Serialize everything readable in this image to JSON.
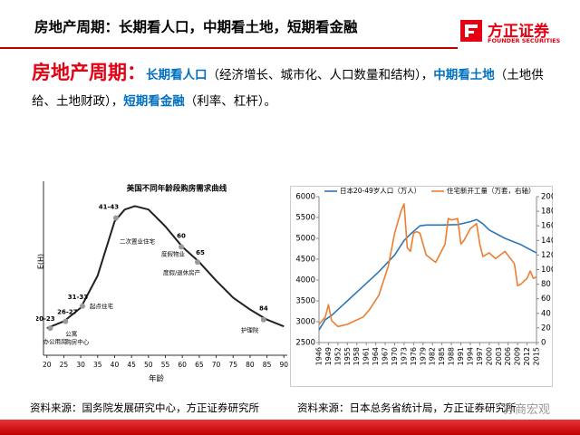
{
  "header": {
    "title": "房地产周期：长期看人口，中期看土地，短期看金融",
    "logo": "方正证券",
    "logo_sub": "FOUNDER SECURITIES"
  },
  "body": {
    "segments": [
      {
        "text": "房地产周期：",
        "color": "#e60012"
      },
      {
        "text": "长期看人口",
        "color": "#0070c0"
      },
      {
        "text": "（经济增长、城市化、人口数量和结构），",
        "color": "#000000"
      },
      {
        "text": "中期看土地",
        "color": "#0070c0"
      },
      {
        "text": "（土地供给、土地财政），",
        "color": "#000000"
      },
      {
        "text": "短期看金融",
        "color": "#0070c0"
      },
      {
        "text": "（利率、杠杆）。",
        "color": "#000000"
      }
    ]
  },
  "sources": [
    "资料来源：国务院发展研究中心，方正证券研究所",
    "资料来源：日本总务省统计局，方正证券研究所"
  ],
  "watermark": "券商宏观",
  "chart_data": [
    {
      "type": "line",
      "title": "美国不同年龄段购房需求曲线",
      "xlabel": "年龄",
      "ylabel": "E(H)",
      "x": [
        20,
        25,
        30,
        35,
        40,
        43,
        46,
        50,
        55,
        60,
        65,
        70,
        75,
        80,
        85,
        90
      ],
      "series": [
        {
          "color": "#222222",
          "values": [
            16,
            20,
            28,
            47,
            79,
            86,
            88,
            86,
            76,
            64,
            55,
            44,
            34,
            27,
            21,
            17
          ]
        }
      ],
      "markers": {
        "color": "#999999",
        "x": [
          21,
          25.5,
          30.5,
          40.4,
          59.7,
          64.5,
          84
        ],
        "values": [
          16,
          20,
          29,
          81,
          64,
          55,
          21
        ],
        "labels": [
          "20-23",
          "26-27",
          "31-33",
          "41-43",
          "60",
          "65",
          "84"
        ],
        "notes": [
          [
            "办公用房"
          ],
          [
            "公寓",
            "购房中心"
          ],
          [
            "起点住宅"
          ],
          [
            "二次置业住宅"
          ],
          [
            "度假物业"
          ],
          [
            "度假/退休房产"
          ],
          [
            "护理院"
          ]
        ]
      },
      "xlim": [
        19,
        91
      ],
      "xticks": [
        20,
        25,
        30,
        35,
        40,
        45,
        50,
        55,
        60,
        65,
        70,
        75,
        80,
        85,
        90
      ],
      "ylim": [
        0,
        100
      ]
    },
    {
      "type": "line",
      "series": [
        {
          "name": "日本20-49岁人口（万人）",
          "color": "#2e75b6",
          "x": [
            1946,
            1948,
            1950,
            1955,
            1960,
            1965,
            1970,
            1973,
            1975,
            1978,
            1980,
            1985,
            1990,
            1994,
            1996,
            1998,
            2000,
            2005,
            2010,
            2015
          ],
          "values": [
            2800,
            3050,
            3150,
            3500,
            3850,
            4200,
            4600,
            4950,
            5100,
            5300,
            5320,
            5320,
            5330,
            5400,
            5450,
            5350,
            5200,
            5000,
            4850,
            4650
          ]
        },
        {
          "name": "住宅新开工量（万套，右轴）",
          "color": "#ed7d31",
          "axis": "y2",
          "x": [
            1946,
            1948,
            1949,
            1950,
            1952,
            1955,
            1960,
            1962,
            1965,
            1968,
            1970,
            1972,
            1973,
            1974,
            1975,
            1976,
            1977,
            1978,
            1980,
            1983,
            1986,
            1987,
            1988,
            1990,
            1991,
            1992,
            1994,
            1996,
            1997,
            1998,
            2000,
            2002,
            2005,
            2008,
            2009,
            2010,
            2012,
            2013,
            2014,
            2015
          ],
          "values": [
            25,
            35,
            52,
            30,
            22,
            25,
            35,
            45,
            65,
            105,
            150,
            180,
            190,
            130,
            125,
            150,
            152,
            150,
            120,
            110,
            135,
            170,
            168,
            170,
            135,
            140,
            156,
            163,
            135,
            118,
            123,
            115,
            125,
            108,
            78,
            80,
            88,
            98,
            88,
            90
          ]
        }
      ],
      "xlim": [
        1946,
        2015
      ],
      "xticks": [
        1946,
        1949,
        1952,
        1955,
        1958,
        1961,
        1964,
        1967,
        1970,
        1973,
        1976,
        1979,
        1982,
        1985,
        1988,
        1991,
        1994,
        1997,
        2000,
        2003,
        2006,
        2009,
        2012,
        2015
      ],
      "ylim": [
        2500,
        6000
      ],
      "yticks": [
        2500,
        3000,
        3500,
        4000,
        4500,
        5000,
        5500,
        6000
      ],
      "y2lim": [
        0,
        200
      ],
      "y2ticks": [
        0,
        20,
        40,
        60,
        80,
        100,
        120,
        140,
        160,
        180,
        200
      ]
    }
  ]
}
